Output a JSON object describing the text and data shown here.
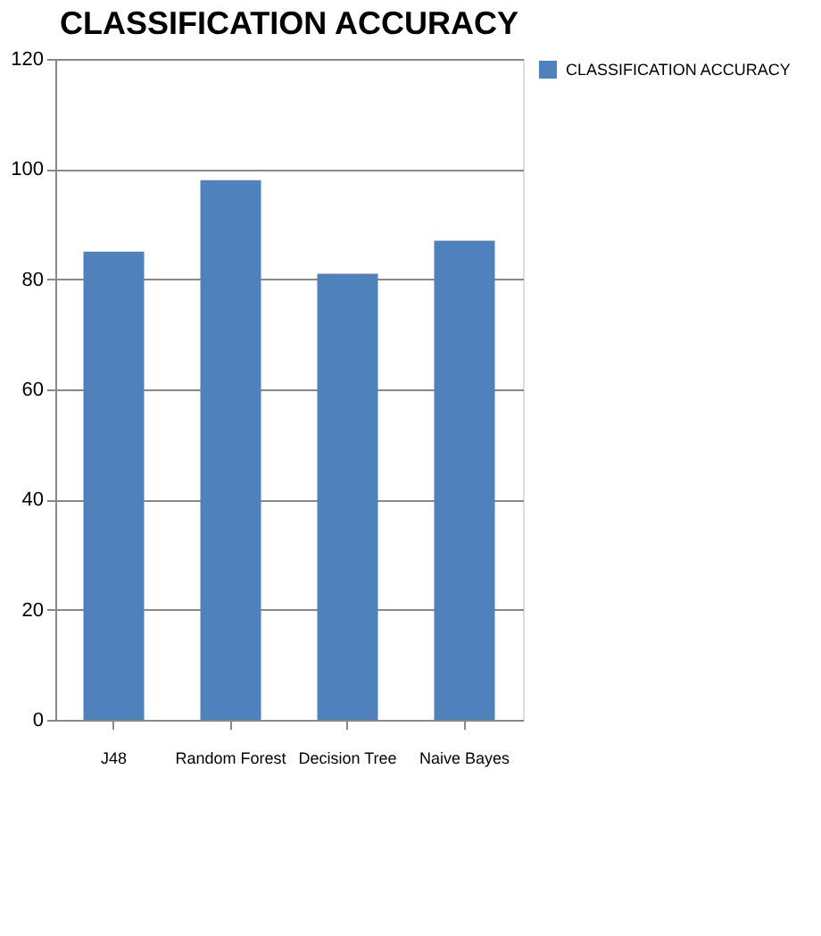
{
  "chart_data": {
    "type": "bar",
    "title": "CLASSIFICATION ACCURACY",
    "categories": [
      "J48",
      "Random Forest",
      "Decision Tree",
      "Naive Bayes"
    ],
    "series": [
      {
        "name": "CLASSIFICATION ACCURACY",
        "color": "#4f81bd",
        "values": [
          85,
          98,
          81,
          87
        ]
      }
    ],
    "ylim": [
      0,
      120
    ],
    "yticks": [
      0,
      20,
      40,
      60,
      80,
      100,
      120
    ],
    "grid": "y",
    "legend": "right"
  }
}
